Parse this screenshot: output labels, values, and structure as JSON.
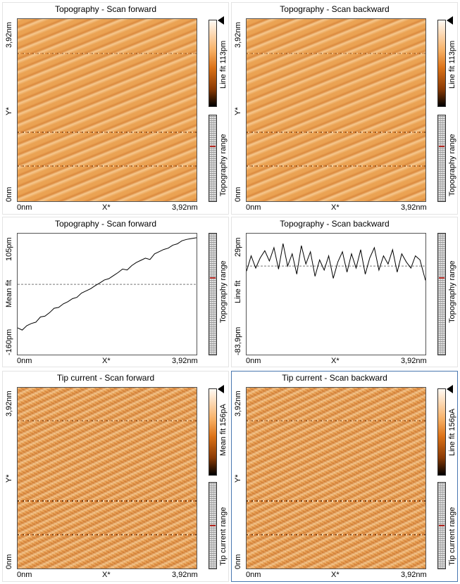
{
  "panels": [
    {
      "title": "Topography - Scan forward",
      "y_top": "3,92nm",
      "y_mid": "Y*",
      "y_bot": "0nm",
      "x_left": "0nm",
      "x_mid": "X*",
      "x_right": "3,92nm",
      "colorbar_label": "Line fit 113pm",
      "range_label": "Topography range"
    },
    {
      "title": "Topography - Scan backward",
      "y_top": "3,92nm",
      "y_mid": "Y*",
      "y_bot": "0nm",
      "x_left": "0nm",
      "x_mid": "X*",
      "x_right": "3,92nm",
      "colorbar_label": "Line fit 113pm",
      "range_label": "Topography range"
    },
    {
      "title": "Topography - Scan forward",
      "y_top": "105pm",
      "y_mid": "Mean fit",
      "y_bot": "-160pm",
      "x_left": "0nm",
      "x_mid": "X*",
      "x_right": "3,92nm",
      "range_label": "Topography range"
    },
    {
      "title": "Topography - Scan backward",
      "y_top": "29pm",
      "y_mid": "Line fit",
      "y_bot": "-83,9pm",
      "x_left": "0nm",
      "x_mid": "X*",
      "x_right": "3,92nm",
      "range_label": "Topography range"
    },
    {
      "title": "Tip current - Scan forward",
      "y_top": "3,92nm",
      "y_mid": "Y*",
      "y_bot": "0nm",
      "x_left": "0nm",
      "x_mid": "X*",
      "x_right": "3,92nm",
      "colorbar_label": "Mean fit 156pA",
      "range_label": "Tip current range"
    },
    {
      "title": "Tip current - Scan backward",
      "y_top": "3,92nm",
      "y_mid": "Y*",
      "y_bot": "0nm",
      "x_left": "0nm",
      "x_mid": "X*",
      "x_right": "3,92nm",
      "colorbar_label": "Line fit 156pA",
      "range_label": "Tip current range"
    }
  ],
  "chart_data": [
    {
      "type": "line",
      "title": "Topography - Scan forward",
      "xlabel": "X*",
      "ylabel": "Mean fit",
      "xlim": [
        0,
        3.92
      ],
      "ylim": [
        -160,
        105
      ],
      "x_unit": "nm",
      "y_unit": "pm",
      "reference_line": -5,
      "x": [
        0,
        0.1,
        0.2,
        0.3,
        0.4,
        0.5,
        0.6,
        0.7,
        0.8,
        0.9,
        1.0,
        1.1,
        1.2,
        1.3,
        1.4,
        1.5,
        1.6,
        1.7,
        1.8,
        1.9,
        2.0,
        2.1,
        2.2,
        2.3,
        2.4,
        2.5,
        2.6,
        2.7,
        2.8,
        2.9,
        3.0,
        3.1,
        3.2,
        3.3,
        3.4,
        3.5,
        3.6,
        3.7,
        3.8,
        3.92
      ],
      "series": [
        {
          "values": [
            -105,
            -110,
            -100,
            -95,
            -92,
            -80,
            -78,
            -70,
            -60,
            -58,
            -50,
            -45,
            -38,
            -35,
            -25,
            -20,
            -15,
            -8,
            -2,
            5,
            8,
            15,
            22,
            30,
            28,
            38,
            45,
            50,
            55,
            52,
            65,
            70,
            75,
            78,
            85,
            88,
            95,
            98,
            100,
            102
          ]
        }
      ]
    },
    {
      "type": "line",
      "title": "Topography - Scan backward",
      "xlabel": "X*",
      "ylabel": "Line fit",
      "xlim": [
        0,
        3.92
      ],
      "ylim": [
        -83.9,
        29
      ],
      "x_unit": "nm",
      "y_unit": "pm",
      "reference_line": 0,
      "x": [
        0,
        0.1,
        0.2,
        0.3,
        0.4,
        0.5,
        0.6,
        0.7,
        0.8,
        0.9,
        1.0,
        1.1,
        1.2,
        1.3,
        1.4,
        1.5,
        1.6,
        1.7,
        1.8,
        1.9,
        2.0,
        2.1,
        2.2,
        2.3,
        2.4,
        2.5,
        2.6,
        2.7,
        2.8,
        2.9,
        3.0,
        3.1,
        3.2,
        3.3,
        3.4,
        3.5,
        3.6,
        3.7,
        3.8,
        3.92
      ],
      "series": [
        {
          "values": [
            -5,
            10,
            -2,
            8,
            15,
            5,
            18,
            -3,
            22,
            0,
            12,
            -8,
            20,
            2,
            14,
            -10,
            6,
            -4,
            10,
            -12,
            4,
            14,
            -6,
            12,
            -2,
            16,
            -8,
            8,
            18,
            -4,
            10,
            2,
            16,
            -6,
            12,
            4,
            -2,
            10,
            6,
            -14
          ]
        }
      ]
    }
  ]
}
